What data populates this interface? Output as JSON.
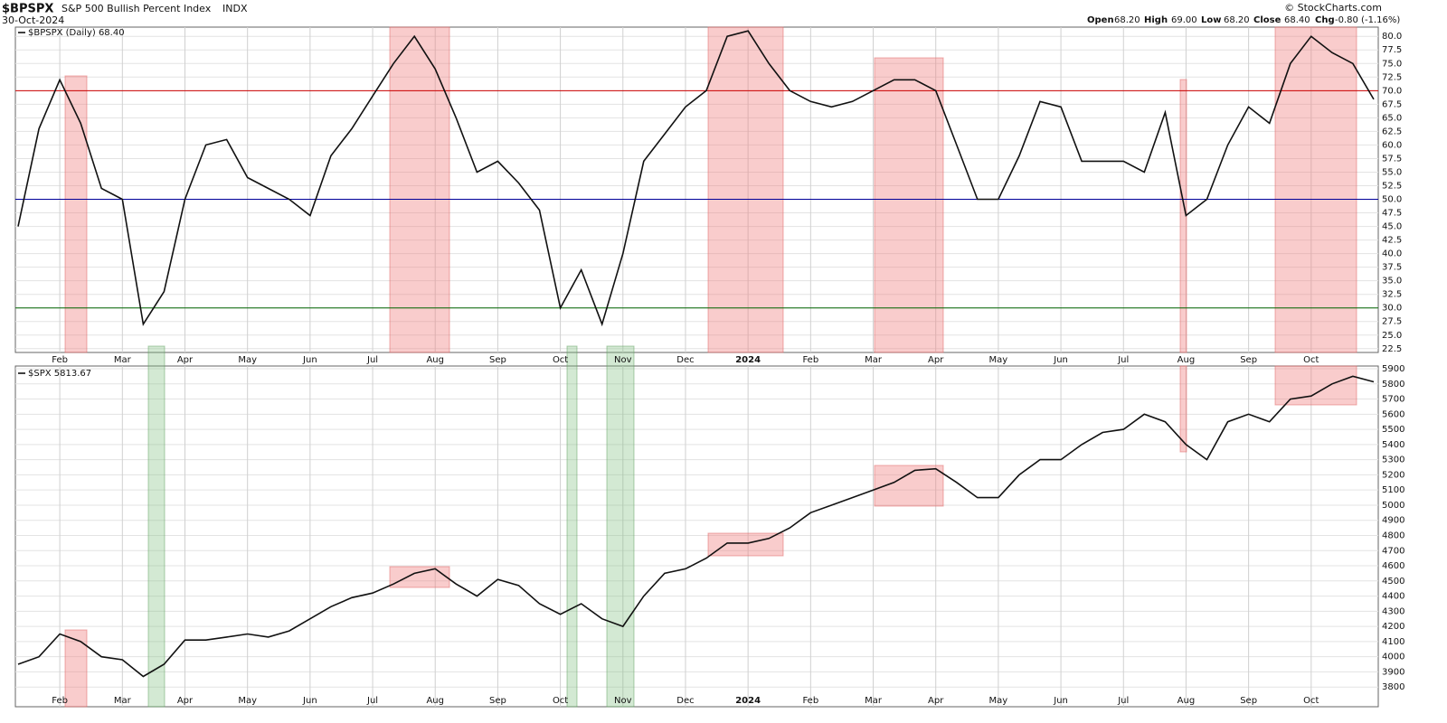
{
  "header": {
    "symbol": "$BPSPX",
    "name": "S&P 500 Bullish Percent Index",
    "exchange": "INDX",
    "date": "30-Oct-2024",
    "open_label": "Open",
    "open": "68.20",
    "high_label": "High",
    "high": "69.00",
    "low_label": "Low",
    "low": "68.20",
    "close_label": "Close",
    "close": "68.40",
    "chg_label": "Chg",
    "chg": "-0.80 (-1.16%)",
    "credit": "© StockCharts.com"
  },
  "chart_data": [
    {
      "type": "line",
      "panel": "top",
      "categories": [
        null,
        null,
        "Feb",
        null,
        null,
        "Mar",
        null,
        null,
        "Apr",
        null,
        null,
        "May",
        null,
        null,
        "Jun",
        null,
        null,
        "Jul",
        null,
        null,
        "Aug",
        null,
        null,
        "Sep",
        null,
        null,
        "Oct",
        null,
        null,
        "Nov",
        null,
        null,
        "Dec",
        null,
        null,
        "2024",
        null,
        null,
        "Feb",
        null,
        null,
        "Mar",
        null,
        null,
        "Apr",
        null,
        null,
        "May",
        null,
        null,
        "Jun",
        null,
        null,
        "Jul",
        null,
        null,
        "Aug",
        null,
        null,
        "Sep",
        null,
        null,
        "Oct",
        null,
        null,
        null
      ],
      "series": [
        {
          "name": "$BPSPX (Daily) 68.40",
          "color": "#111111",
          "values": [
            45,
            63,
            72,
            64,
            52,
            50,
            27,
            33,
            50,
            60,
            61,
            54,
            52,
            50,
            47,
            58,
            63,
            69,
            75,
            80,
            74,
            65,
            55,
            57,
            53,
            48,
            30,
            37,
            27,
            40,
            57,
            62,
            67,
            70,
            80,
            81,
            75,
            70,
            68,
            67,
            68,
            70,
            72,
            72,
            70,
            60,
            50,
            50,
            58,
            68,
            67,
            57,
            57,
            57,
            55,
            66,
            47,
            50,
            60,
            67,
            64,
            75,
            80,
            77,
            75,
            68.4
          ]
        }
      ],
      "ylim": [
        21.8,
        81.7
      ],
      "yticks": [
        22.5,
        {
          "value": 25,
          "label": "25.0"
        },
        27.5,
        {
          "value": 30,
          "label": "30.0"
        },
        32.5,
        {
          "value": 35,
          "label": "35.0"
        },
        37.5,
        {
          "value": 40,
          "label": "40.0"
        },
        42.5,
        {
          "value": 45,
          "label": "45.0"
        },
        47.5,
        {
          "value": 50,
          "label": "50.0"
        },
        52.5,
        {
          "value": 55,
          "label": "55.0"
        },
        57.5,
        {
          "value": 60,
          "label": "60.0"
        },
        62.5,
        {
          "value": 65,
          "label": "65.0"
        },
        67.5,
        {
          "value": 70,
          "label": "70.0"
        },
        72.5,
        {
          "value": 75,
          "label": "75.0"
        },
        77.5,
        {
          "value": 80,
          "label": "80.0"
        }
      ],
      "hlines": [
        {
          "value": 70,
          "color": "#cc0000"
        },
        {
          "value": 50,
          "color": "#000099"
        },
        {
          "value": 30,
          "color": "#006600"
        }
      ],
      "grid": true
    },
    {
      "type": "line",
      "panel": "bottom",
      "categories": [
        null,
        null,
        "Feb",
        null,
        null,
        "Mar",
        null,
        null,
        "Apr",
        null,
        null,
        "May",
        null,
        null,
        "Jun",
        null,
        null,
        "Jul",
        null,
        null,
        "Aug",
        null,
        null,
        "Sep",
        null,
        null,
        "Oct",
        null,
        null,
        "Nov",
        null,
        null,
        "Dec",
        null,
        null,
        "2024",
        null,
        null,
        "Feb",
        null,
        null,
        "Mar",
        null,
        null,
        "Apr",
        null,
        null,
        "May",
        null,
        null,
        "Jun",
        null,
        null,
        "Jul",
        null,
        null,
        "Aug",
        null,
        null,
        "Sep",
        null,
        null,
        "Oct",
        null,
        null,
        null
      ],
      "series": [
        {
          "name": "$SPX 5813.67",
          "color": "#111111",
          "values": [
            3950,
            4000,
            4150,
            4100,
            4000,
            3980,
            3870,
            3950,
            4110,
            4110,
            4130,
            4150,
            4130,
            4170,
            4250,
            4330,
            4390,
            4420,
            4480,
            4550,
            4580,
            4480,
            4400,
            4510,
            4470,
            4350,
            4280,
            4350,
            4250,
            4200,
            4400,
            4550,
            4580,
            4650,
            4750,
            4750,
            4780,
            4850,
            4950,
            5000,
            5050,
            5100,
            5150,
            5230,
            5240,
            5150,
            5050,
            5050,
            5200,
            5300,
            5300,
            5400,
            5480,
            5500,
            5600,
            5550,
            5400,
            5300,
            5550,
            5600,
            5550,
            5700,
            5720,
            5800,
            5850,
            5813.67
          ]
        }
      ],
      "ylim": [
        3670,
        5918
      ],
      "yticks": [
        3800,
        3900,
        4000,
        4100,
        4200,
        4300,
        4400,
        4500,
        4600,
        4700,
        4800,
        4900,
        5000,
        5100,
        5200,
        5300,
        5400,
        5500,
        5600,
        5700,
        5800,
        5900
      ],
      "grid": true
    }
  ]
}
